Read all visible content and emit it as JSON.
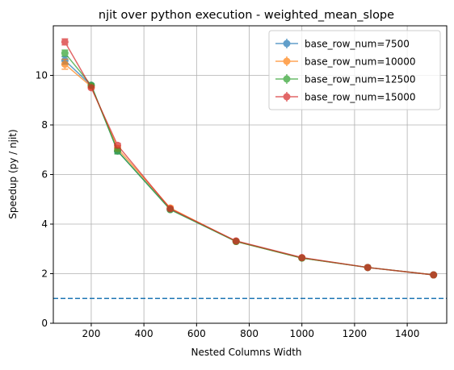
{
  "chart_data": {
    "type": "line",
    "title": "njit over python execution - weighted_mean_slope",
    "x_label": "Nested Columns Width",
    "y_label": "Speedup (py / njit)",
    "x": [
      100,
      200,
      300,
      500,
      750,
      1000,
      1250,
      1500
    ],
    "series": [
      {
        "name": "base_row_num=7500",
        "color": "#1f77b4",
        "values": [
          10.6,
          9.6,
          6.95,
          4.6,
          3.3,
          2.63,
          2.25,
          1.95
        ],
        "errors": [
          0.15,
          0.06,
          0.1,
          0.05,
          0.04,
          0.03,
          0.03,
          0.03
        ]
      },
      {
        "name": "base_row_num=10000",
        "color": "#ff7f0e",
        "values": [
          10.45,
          9.55,
          7.05,
          4.65,
          3.3,
          2.63,
          2.25,
          1.95
        ],
        "errors": [
          0.2,
          0.06,
          0.1,
          0.08,
          0.04,
          0.03,
          0.03,
          0.03
        ]
      },
      {
        "name": "base_row_num=12500",
        "color": "#2ca02c",
        "values": [
          10.9,
          9.6,
          6.95,
          4.58,
          3.3,
          2.63,
          2.25,
          1.95
        ],
        "errors": [
          0.12,
          0.06,
          0.12,
          0.05,
          0.04,
          0.03,
          0.03,
          0.03
        ]
      },
      {
        "name": "base_row_num=15000",
        "color": "#d62728",
        "values": [
          11.35,
          9.5,
          7.18,
          4.62,
          3.32,
          2.65,
          2.25,
          1.95
        ],
        "errors": [
          0.12,
          0.06,
          0.08,
          0.05,
          0.04,
          0.03,
          0.03,
          0.03
        ]
      }
    ],
    "reference_line": {
      "value": 1,
      "color": "#1f77b4",
      "style": "dashed"
    },
    "xlim": [
      56,
      1550
    ],
    "ylim": [
      0,
      12
    ],
    "xticks": [
      200,
      400,
      600,
      800,
      1000,
      1200,
      1400
    ],
    "yticks": [
      0,
      2,
      4,
      6,
      8,
      10
    ],
    "grid": true,
    "legend": "upper-right"
  }
}
